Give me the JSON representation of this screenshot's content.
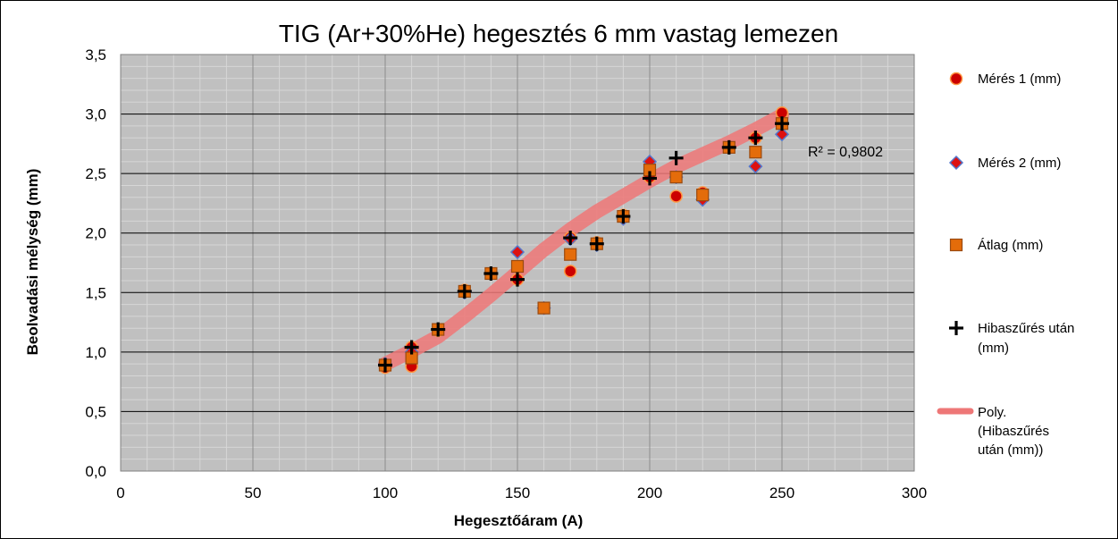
{
  "chart_data": {
    "type": "scatter",
    "title": "TIG (Ar+30%He) hegesztés 6 mm vastag lemezen",
    "xlabel": "Hegesztőáram (A)",
    "ylabel": "Beolvadási mélység (mm)",
    "xlim": [
      0,
      300
    ],
    "ylim": [
      0,
      3.5
    ],
    "x_ticks": [
      "0",
      "50",
      "100",
      "150",
      "200",
      "250",
      "300"
    ],
    "y_ticks": [
      "0,0",
      "0,5",
      "1,0",
      "1,5",
      "2,0",
      "2,5",
      "3,0",
      "3,5"
    ],
    "grid": true,
    "legend_position": "right",
    "r_squared_label": "R² = 0,9802",
    "series": [
      {
        "name": "Mérés 1 (mm)",
        "marker": "circle",
        "color": "#cc0000",
        "points": [
          [
            100,
            0.87
          ],
          [
            110,
            0.88
          ],
          [
            110,
            1.04
          ],
          [
            120,
            1.18
          ],
          [
            130,
            1.52
          ],
          [
            140,
            1.66
          ],
          [
            150,
            1.61
          ],
          [
            160,
            1.37
          ],
          [
            170,
            1.68
          ],
          [
            170,
            1.96
          ],
          [
            180,
            1.92
          ],
          [
            190,
            2.15
          ],
          [
            200,
            2.47
          ],
          [
            210,
            2.31
          ],
          [
            220,
            2.34
          ],
          [
            230,
            2.72
          ],
          [
            240,
            2.8
          ],
          [
            250,
            3.01
          ]
        ]
      },
      {
        "name": "Mérés 2 (mm)",
        "marker": "diamond",
        "color": "#dd1111",
        "points": [
          [
            100,
            0.9
          ],
          [
            110,
            1.0
          ],
          [
            120,
            1.19
          ],
          [
            130,
            1.5
          ],
          [
            140,
            1.66
          ],
          [
            150,
            1.84
          ],
          [
            160,
            1.37
          ],
          [
            170,
            1.95
          ],
          [
            180,
            1.9
          ],
          [
            190,
            2.12
          ],
          [
            200,
            2.6
          ],
          [
            210,
            2.47
          ],
          [
            220,
            2.28
          ],
          [
            230,
            2.72
          ],
          [
            240,
            2.56
          ],
          [
            250,
            2.83
          ]
        ]
      },
      {
        "name": "Átlag (mm)",
        "marker": "square",
        "color": "#e46c0a",
        "points": [
          [
            100,
            0.89
          ],
          [
            110,
            0.95
          ],
          [
            120,
            1.19
          ],
          [
            130,
            1.51
          ],
          [
            140,
            1.66
          ],
          [
            150,
            1.72
          ],
          [
            160,
            1.37
          ],
          [
            170,
            1.82
          ],
          [
            180,
            1.91
          ],
          [
            190,
            2.14
          ],
          [
            200,
            2.53
          ],
          [
            210,
            2.47
          ],
          [
            220,
            2.32
          ],
          [
            230,
            2.72
          ],
          [
            240,
            2.68
          ],
          [
            250,
            2.92
          ]
        ]
      },
      {
        "name": "Hibaszűrés után (mm)",
        "marker": "plus",
        "color": "#000000",
        "points": [
          [
            100,
            0.89
          ],
          [
            110,
            1.04
          ],
          [
            120,
            1.19
          ],
          [
            130,
            1.51
          ],
          [
            140,
            1.66
          ],
          [
            150,
            1.61
          ],
          [
            170,
            1.96
          ],
          [
            180,
            1.91
          ],
          [
            190,
            2.14
          ],
          [
            200,
            2.46
          ],
          [
            210,
            2.63
          ],
          [
            230,
            2.72
          ],
          [
            240,
            2.8
          ],
          [
            250,
            2.92
          ]
        ]
      }
    ],
    "trendline": {
      "name": "Poly. (Hibaszűrés után (mm))",
      "color": "#ee7777",
      "points": [
        [
          100,
          0.9
        ],
        [
          110,
          1.01
        ],
        [
          120,
          1.13
        ],
        [
          130,
          1.3
        ],
        [
          140,
          1.48
        ],
        [
          150,
          1.67
        ],
        [
          160,
          1.86
        ],
        [
          170,
          2.03
        ],
        [
          180,
          2.18
        ],
        [
          190,
          2.31
        ],
        [
          200,
          2.44
        ],
        [
          210,
          2.56
        ],
        [
          220,
          2.66
        ],
        [
          230,
          2.76
        ],
        [
          240,
          2.87
        ],
        [
          250,
          2.99
        ]
      ]
    }
  }
}
